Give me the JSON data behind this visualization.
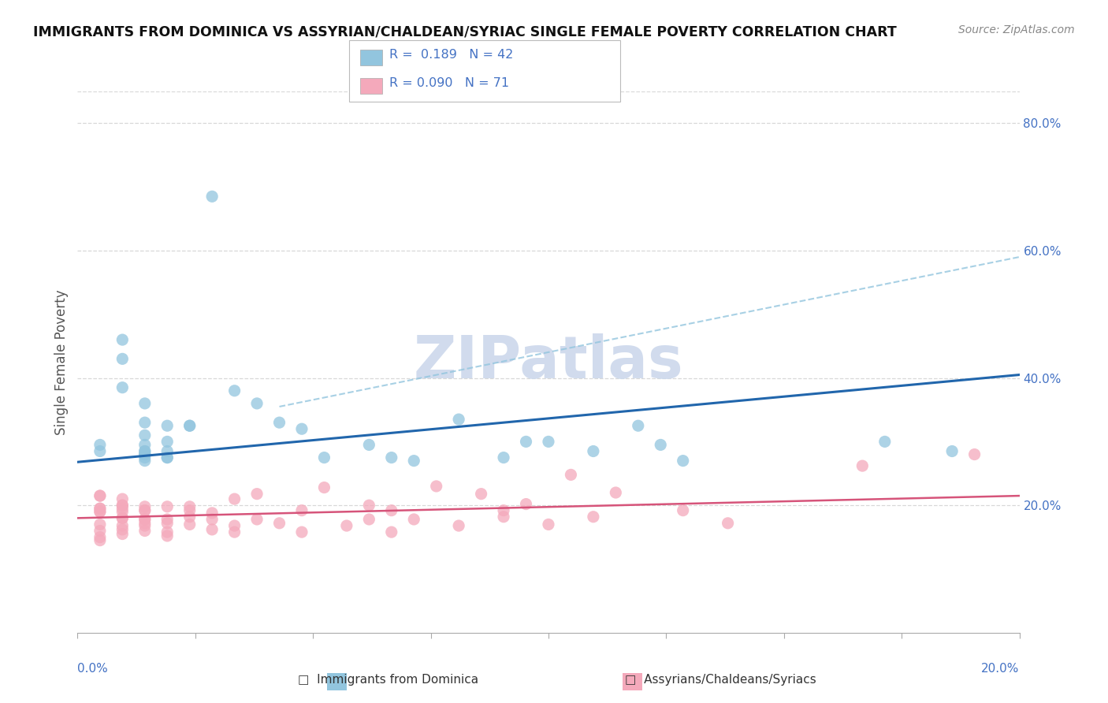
{
  "title": "IMMIGRANTS FROM DOMINICA VS ASSYRIAN/CHALDEAN/SYRIAC SINGLE FEMALE POVERTY CORRELATION CHART",
  "source": "Source: ZipAtlas.com",
  "ylabel": "Single Female Poverty",
  "legend_blue_label": "Immigrants from Dominica",
  "legend_pink_label": "Assyrians/Chaldeans/Syriacs",
  "blue_color": "#92c5de",
  "pink_color": "#f4a9bb",
  "blue_line_color": "#2166ac",
  "pink_line_color": "#d6547a",
  "dash_line_color": "#92c5de",
  "watermark": "ZIPatlas",
  "blue_scatter": [
    [
      0.001,
      0.285
    ],
    [
      0.001,
      0.295
    ],
    [
      0.002,
      0.46
    ],
    [
      0.002,
      0.43
    ],
    [
      0.002,
      0.385
    ],
    [
      0.003,
      0.36
    ],
    [
      0.003,
      0.33
    ],
    [
      0.003,
      0.31
    ],
    [
      0.003,
      0.295
    ],
    [
      0.003,
      0.285
    ],
    [
      0.003,
      0.285
    ],
    [
      0.003,
      0.28
    ],
    [
      0.003,
      0.28
    ],
    [
      0.003,
      0.28
    ],
    [
      0.003,
      0.275
    ],
    [
      0.003,
      0.27
    ],
    [
      0.004,
      0.325
    ],
    [
      0.004,
      0.275
    ],
    [
      0.004,
      0.285
    ],
    [
      0.004,
      0.275
    ],
    [
      0.004,
      0.3
    ],
    [
      0.005,
      0.325
    ],
    [
      0.005,
      0.325
    ],
    [
      0.006,
      0.685
    ],
    [
      0.007,
      0.38
    ],
    [
      0.008,
      0.36
    ],
    [
      0.009,
      0.33
    ],
    [
      0.01,
      0.32
    ],
    [
      0.011,
      0.275
    ],
    [
      0.013,
      0.295
    ],
    [
      0.014,
      0.275
    ],
    [
      0.015,
      0.27
    ],
    [
      0.017,
      0.335
    ],
    [
      0.019,
      0.275
    ],
    [
      0.02,
      0.3
    ],
    [
      0.021,
      0.3
    ],
    [
      0.023,
      0.285
    ],
    [
      0.025,
      0.325
    ],
    [
      0.026,
      0.295
    ],
    [
      0.027,
      0.27
    ],
    [
      0.036,
      0.3
    ],
    [
      0.039,
      0.285
    ]
  ],
  "pink_scatter": [
    [
      0.001,
      0.19
    ],
    [
      0.001,
      0.195
    ],
    [
      0.001,
      0.145
    ],
    [
      0.001,
      0.16
    ],
    [
      0.001,
      0.15
    ],
    [
      0.001,
      0.215
    ],
    [
      0.001,
      0.195
    ],
    [
      0.001,
      0.215
    ],
    [
      0.001,
      0.17
    ],
    [
      0.001,
      0.19
    ],
    [
      0.002,
      0.18
    ],
    [
      0.002,
      0.195
    ],
    [
      0.002,
      0.168
    ],
    [
      0.002,
      0.155
    ],
    [
      0.002,
      0.2
    ],
    [
      0.002,
      0.18
    ],
    [
      0.002,
      0.2
    ],
    [
      0.002,
      0.19
    ],
    [
      0.002,
      0.21
    ],
    [
      0.002,
      0.162
    ],
    [
      0.003,
      0.178
    ],
    [
      0.003,
      0.168
    ],
    [
      0.003,
      0.192
    ],
    [
      0.003,
      0.198
    ],
    [
      0.003,
      0.16
    ],
    [
      0.003,
      0.178
    ],
    [
      0.003,
      0.172
    ],
    [
      0.003,
      0.192
    ],
    [
      0.004,
      0.198
    ],
    [
      0.004,
      0.158
    ],
    [
      0.004,
      0.178
    ],
    [
      0.004,
      0.152
    ],
    [
      0.004,
      0.172
    ],
    [
      0.005,
      0.192
    ],
    [
      0.005,
      0.182
    ],
    [
      0.005,
      0.198
    ],
    [
      0.005,
      0.17
    ],
    [
      0.006,
      0.162
    ],
    [
      0.006,
      0.178
    ],
    [
      0.006,
      0.188
    ],
    [
      0.007,
      0.168
    ],
    [
      0.007,
      0.21
    ],
    [
      0.007,
      0.158
    ],
    [
      0.008,
      0.178
    ],
    [
      0.008,
      0.218
    ],
    [
      0.009,
      0.172
    ],
    [
      0.01,
      0.192
    ],
    [
      0.01,
      0.158
    ],
    [
      0.011,
      0.228
    ],
    [
      0.012,
      0.168
    ],
    [
      0.013,
      0.178
    ],
    [
      0.013,
      0.2
    ],
    [
      0.014,
      0.158
    ],
    [
      0.014,
      0.192
    ],
    [
      0.015,
      0.178
    ],
    [
      0.016,
      0.23
    ],
    [
      0.017,
      0.168
    ],
    [
      0.018,
      0.218
    ],
    [
      0.019,
      0.192
    ],
    [
      0.019,
      0.182
    ],
    [
      0.02,
      0.202
    ],
    [
      0.021,
      0.17
    ],
    [
      0.022,
      0.248
    ],
    [
      0.023,
      0.182
    ],
    [
      0.024,
      0.22
    ],
    [
      0.027,
      0.192
    ],
    [
      0.029,
      0.172
    ],
    [
      0.035,
      0.262
    ],
    [
      0.04,
      0.28
    ]
  ],
  "xlim": [
    0.0,
    0.042
  ],
  "ylim": [
    0.0,
    0.85
  ],
  "blue_line_x": [
    0.0,
    0.042
  ],
  "blue_line_y": [
    0.268,
    0.405
  ],
  "pink_line_x": [
    0.0,
    0.042
  ],
  "pink_line_y": [
    0.18,
    0.215
  ],
  "dash_line_x": [
    0.009,
    0.042
  ],
  "dash_line_y": [
    0.355,
    0.59
  ],
  "yticks": [
    0.2,
    0.4,
    0.6,
    0.8
  ],
  "ytick_labels": [
    "20.0%",
    "40.0%",
    "60.0%",
    "80.0%"
  ],
  "background_color": "#ffffff",
  "grid_color": "#d8d8d8",
  "axis_color": "#4472c4",
  "watermark_color": "#ccd8ec"
}
